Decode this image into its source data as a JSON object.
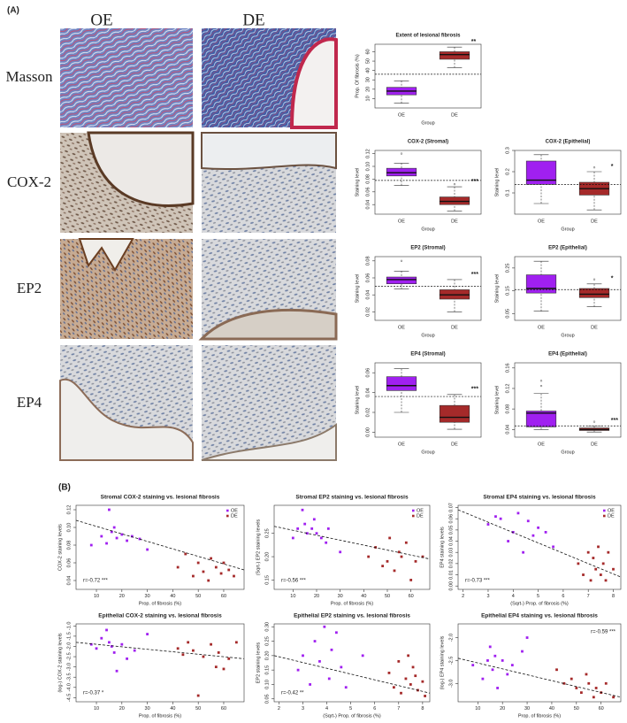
{
  "figure": {
    "panel_a_label": "(A)",
    "columns": [
      "OE",
      "DE"
    ],
    "rows": [
      "Masson",
      "COX-2",
      "EP2",
      "EP4"
    ],
    "panel_b_label": "(B)"
  },
  "chart_data": [
    {
      "type": "box",
      "title": "Extent of lesional fibrosis",
      "xlabel": "Group",
      "ylabel": "Prop. Of fibrosis (%)",
      "categories": [
        "OE",
        "DE"
      ],
      "colors": [
        "#a020f0",
        "#a52a2a"
      ],
      "boxes": [
        {
          "min": 5,
          "q1": 14,
          "median": 18,
          "q3": 22,
          "max": 29,
          "outliers": []
        },
        {
          "min": 43,
          "q1": 52,
          "median": 57,
          "q3": 60,
          "max": 65,
          "outliers": []
        }
      ],
      "reference_line": 36,
      "annotation": "**",
      "ylim": [
        0,
        68
      ],
      "yticks": [
        10,
        20,
        30,
        40,
        50,
        60
      ]
    },
    {
      "type": "box",
      "title": "COX-2 (Stromal)",
      "xlabel": "Group",
      "ylabel": "Staining level",
      "categories": [
        "OE",
        "DE"
      ],
      "colors": [
        "#a020f0",
        "#a52a2a"
      ],
      "boxes": [
        {
          "min": 0.07,
          "q1": 0.085,
          "median": 0.09,
          "q3": 0.097,
          "max": 0.105,
          "outliers": [
            0.12
          ]
        },
        {
          "min": 0.03,
          "q1": 0.04,
          "median": 0.045,
          "q3": 0.052,
          "max": 0.068,
          "outliers": [
            0.072
          ]
        }
      ],
      "reference_line": 0.078,
      "annotation": "***",
      "ylim": [
        0.025,
        0.125
      ],
      "yticks": [
        0.04,
        0.06,
        0.08,
        {
          "value": 0.1,
          "label": "0.10"
        },
        0.12
      ]
    },
    {
      "type": "box",
      "title": "COX-2 (Epithelial)",
      "xlabel": "Group",
      "ylabel": "Staining level",
      "categories": [
        "OE",
        "DE"
      ],
      "colors": [
        "#a020f0",
        "#a52a2a"
      ],
      "boxes": [
        {
          "min": 0.05,
          "q1": 0.14,
          "median": 0.16,
          "q3": 0.25,
          "max": 0.28,
          "outliers": []
        },
        {
          "min": 0.02,
          "q1": 0.09,
          "median": 0.12,
          "q3": 0.15,
          "max": 0.2,
          "outliers": [
            0.22
          ]
        }
      ],
      "reference_line": 0.14,
      "annotation": "*",
      "ylim": [
        0,
        0.3
      ],
      "yticks": [
        0.1,
        0.2,
        0.3
      ]
    },
    {
      "type": "box",
      "title": "EP2 (Stromal)",
      "xlabel": "Group",
      "ylabel": "Staining level",
      "categories": [
        "OE",
        "DE"
      ],
      "colors": [
        "#a020f0",
        "#a52a2a"
      ],
      "boxes": [
        {
          "min": 0.047,
          "q1": 0.053,
          "median": 0.058,
          "q3": 0.061,
          "max": 0.068,
          "outliers": [
            0.08
          ]
        },
        {
          "min": 0.02,
          "q1": 0.035,
          "median": 0.04,
          "q3": 0.046,
          "max": 0.058,
          "outliers": []
        }
      ],
      "reference_line": 0.05,
      "annotation": "***",
      "ylim": [
        0.01,
        0.085
      ],
      "yticks": [
        0.02,
        0.04,
        0.06,
        0.08
      ]
    },
    {
      "type": "box",
      "title": "EP2 (Epithelial)",
      "xlabel": "Group",
      "ylabel": "Staining level",
      "categories": [
        "OE",
        "DE"
      ],
      "colors": [
        "#a020f0",
        "#a52a2a"
      ],
      "boxes": [
        {
          "min": 0.06,
          "q1": 0.14,
          "median": 0.16,
          "q3": 0.22,
          "max": 0.28,
          "outliers": []
        },
        {
          "min": 0.08,
          "q1": 0.12,
          "median": 0.135,
          "q3": 0.16,
          "max": 0.18,
          "outliers": [
            0.2
          ]
        }
      ],
      "reference_line": 0.155,
      "annotation": "*",
      "ylim": [
        0.02,
        0.3
      ],
      "yticks": [
        0.05,
        0.15,
        0.25
      ]
    },
    {
      "type": "box",
      "title": "EP4 (Stromal)",
      "xlabel": "Group",
      "ylabel": "Staining level",
      "categories": [
        "OE",
        "DE"
      ],
      "colors": [
        "#a020f0",
        "#a52a2a"
      ],
      "boxes": [
        {
          "min": 0.02,
          "q1": 0.042,
          "median": 0.047,
          "q3": 0.056,
          "max": 0.064,
          "outliers": []
        },
        {
          "min": 0.003,
          "q1": 0.01,
          "median": 0.015,
          "q3": 0.027,
          "max": 0.038,
          "outliers": []
        }
      ],
      "reference_line": 0.036,
      "annotation": "***",
      "ylim": [
        -0.005,
        0.07
      ],
      "yticks": [
        {
          "value": 0,
          "label": "0.00"
        },
        0.02,
        0.04,
        0.06
      ]
    },
    {
      "type": "box",
      "title": "EP4 (Epithelial)",
      "xlabel": "Group",
      "ylabel": "Staining level",
      "categories": [
        "OE",
        "DE"
      ],
      "colors": [
        "#a020f0",
        "#a52a2a"
      ],
      "boxes": [
        {
          "min": 0.04,
          "q1": 0.045,
          "median": 0.072,
          "q3": 0.076,
          "max": 0.11,
          "outliers": [
            0.125,
            0.135
          ]
        },
        {
          "min": 0.035,
          "q1": 0.038,
          "median": 0.04,
          "q3": 0.043,
          "max": 0.047,
          "outliers": [
            0.055
          ]
        }
      ],
      "reference_line": 0.047,
      "annotation": "***",
      "ylim": [
        0.025,
        0.17
      ],
      "yticks": [
        0.04,
        0.08,
        0.12,
        0.16
      ]
    },
    {
      "type": "scatter",
      "title": "Stromal COX-2 staining vs. lesional fibrosis",
      "xlabel": "Prop. of fibrosis (%)",
      "ylabel": "COX-2 staining levels",
      "legend": "top-right",
      "series": [
        {
          "name": "OE",
          "color": "#a020f0",
          "x": [
            8,
            12,
            14,
            15,
            16,
            17,
            18,
            20,
            22,
            24,
            27,
            30
          ],
          "y": [
            0.08,
            0.09,
            0.082,
            0.12,
            0.095,
            0.1,
            0.088,
            0.092,
            0.085,
            0.09,
            0.087,
            0.075
          ]
        },
        {
          "name": "DE",
          "color": "#a52a2a",
          "x": [
            42,
            45,
            48,
            50,
            52,
            54,
            55,
            57,
            59,
            60,
            62,
            64
          ],
          "y": [
            0.055,
            0.07,
            0.045,
            0.06,
            0.05,
            0.04,
            0.065,
            0.055,
            0.048,
            0.06,
            0.052,
            0.045
          ]
        }
      ],
      "trendline": {
        "x": [
          2,
          68
        ],
        "y": [
          0.108,
          0.052
        ]
      },
      "annotation": "r=-0.72 ***",
      "annotation_corner": "bottom-left",
      "xlim": [
        2,
        68
      ],
      "xticks": [
        10,
        20,
        30,
        40,
        50,
        60
      ],
      "ylim": [
        0.03,
        0.125
      ],
      "yticks": [
        0.04,
        0.06,
        0.08,
        {
          "value": 0.1,
          "label": "0.10"
        },
        0.12
      ]
    },
    {
      "type": "scatter",
      "title": "Stromal EP2 staining vs. lesional fibrosis",
      "xlabel": "Prop. of fibrosis (%)",
      "ylabel": "(Sqrt-) EP2 staining levels",
      "legend": "top-right",
      "series": [
        {
          "name": "OE",
          "color": "#a020f0",
          "x": [
            10,
            12,
            14,
            15,
            16,
            18,
            19,
            20,
            22,
            24,
            25,
            30
          ],
          "y": [
            0.24,
            0.26,
            0.3,
            0.27,
            0.25,
            0.26,
            0.28,
            0.25,
            0.24,
            0.23,
            0.26,
            0.21
          ]
        },
        {
          "name": "DE",
          "color": "#a52a2a",
          "x": [
            42,
            45,
            48,
            50,
            51,
            53,
            55,
            56,
            58,
            60,
            62,
            65
          ],
          "y": [
            0.2,
            0.22,
            0.18,
            0.19,
            0.24,
            0.17,
            0.21,
            0.2,
            0.23,
            0.15,
            0.19,
            0.2
          ]
        }
      ],
      "trendline": {
        "x": [
          2,
          68
        ],
        "y": [
          0.265,
          0.195
        ]
      },
      "annotation": "r=-0.56 ***",
      "annotation_corner": "bottom-left",
      "xlim": [
        2,
        68
      ],
      "xticks": [
        10,
        20,
        30,
        40,
        50,
        60
      ],
      "ylim": [
        0.13,
        0.31
      ],
      "yticks": [
        0.15,
        {
          "value": 0.2,
          "label": "0.20"
        },
        0.25
      ]
    },
    {
      "type": "scatter",
      "title": "Stromal EP4 staining vs. lesional fibrosis",
      "xlabel": "(Sqrt-) Prop. of fibrosis (%)",
      "ylabel": "EP4 staining levels",
      "legend": "top-right",
      "series": [
        {
          "name": "OE",
          "color": "#a020f0",
          "x": [
            3.0,
            3.3,
            3.5,
            3.8,
            4.0,
            4.2,
            4.4,
            4.6,
            4.8,
            5.0,
            5.3,
            5.6
          ],
          "y": [
            0.055,
            0.062,
            0.06,
            0.04,
            0.048,
            0.065,
            0.03,
            0.058,
            0.045,
            0.052,
            0.048,
            0.035
          ]
        },
        {
          "name": "DE",
          "color": "#a52a2a",
          "x": [
            6.6,
            6.8,
            7.0,
            7.1,
            7.2,
            7.3,
            7.4,
            7.5,
            7.6,
            7.7,
            7.8,
            8.0
          ],
          "y": [
            0.02,
            0.01,
            0.03,
            0.005,
            0.025,
            0.015,
            0.035,
            0.01,
            0.02,
            0.005,
            0.03,
            0.015
          ]
        }
      ],
      "trendline": {
        "x": [
          1.8,
          8.3
        ],
        "y": [
          0.068,
          0.008
        ]
      },
      "annotation": "r=-0.73 ***",
      "annotation_corner": "bottom-left",
      "xlim": [
        1.8,
        8.3
      ],
      "xticks": [
        2,
        3,
        4,
        5,
        6,
        7,
        8
      ],
      "ylim": [
        -0.003,
        0.072
      ],
      "yticks": [
        {
          "value": 0,
          "label": "0.00"
        },
        0.01,
        0.02,
        0.03,
        0.04,
        0.05,
        0.06,
        0.07
      ]
    },
    {
      "type": "scatter",
      "title": "Epithelial COX-2 staining vs. lesional fibrosis",
      "xlabel": "Prop. of fibrosis (%)",
      "ylabel": "(log-) COX-2 staining levels",
      "series": [
        {
          "name": "OE",
          "color": "#a020f0",
          "x": [
            8,
            10,
            12,
            14,
            15,
            16,
            17,
            18,
            20,
            22,
            25,
            30
          ],
          "y": [
            -1.9,
            -2.1,
            -1.6,
            -1.2,
            -1.8,
            -2.0,
            -2.3,
            -3.2,
            -1.9,
            -2.6,
            -2.2,
            -1.4
          ]
        },
        {
          "name": "DE",
          "color": "#a52a2a",
          "x": [
            42,
            44,
            46,
            48,
            50,
            52,
            55,
            57,
            58,
            60,
            62,
            65
          ],
          "y": [
            -2.1,
            -2.4,
            -1.8,
            -2.2,
            -4.4,
            -2.5,
            -1.9,
            -3.0,
            -2.3,
            -3.1,
            -2.6,
            -1.8
          ]
        }
      ],
      "trendline": {
        "x": [
          2,
          68
        ],
        "y": [
          -1.8,
          -2.6
        ]
      },
      "annotation": "r=-0.37 *",
      "annotation_corner": "bottom-left",
      "xlim": [
        2,
        68
      ],
      "xticks": [
        10,
        20,
        30,
        40,
        50,
        60
      ],
      "ylim": [
        -4.7,
        -0.9
      ],
      "yticks": [
        -4.5,
        {
          "value": -4,
          "label": "-4.0"
        },
        -3.5,
        {
          "value": -3,
          "label": "-3.0"
        },
        -2.5,
        {
          "value": -2,
          "label": "-2.0"
        },
        -1.5,
        {
          "value": -1,
          "label": "-1.0"
        }
      ]
    },
    {
      "type": "scatter",
      "title": "Epithelial EP2 staining vs. lesional fibrosis",
      "xlabel": "(Sqrt-) Prop. of fibrosis (%)",
      "ylabel": "EP2 staining levels",
      "series": [
        {
          "name": "OE",
          "color": "#a020f0",
          "x": [
            2.8,
            3.0,
            3.3,
            3.5,
            3.7,
            3.9,
            4.1,
            4.2,
            4.4,
            4.6,
            4.8,
            5.5
          ],
          "y": [
            0.15,
            0.2,
            0.1,
            0.25,
            0.18,
            0.3,
            0.12,
            0.22,
            0.28,
            0.16,
            0.09,
            0.2
          ]
        },
        {
          "name": "DE",
          "color": "#a52a2a",
          "x": [
            6.6,
            6.8,
            7.0,
            7.1,
            7.3,
            7.4,
            7.5,
            7.6,
            7.7,
            7.8,
            8.0,
            8.1
          ],
          "y": [
            0.14,
            0.09,
            0.18,
            0.07,
            0.12,
            0.2,
            0.1,
            0.16,
            0.13,
            0.08,
            0.11,
            0.06
          ]
        }
      ],
      "trendline": {
        "x": [
          1.8,
          8.3
        ],
        "y": [
          0.2,
          0.07
        ]
      },
      "annotation": "r=-0.42 **",
      "annotation_corner": "bottom-left",
      "xlim": [
        1.8,
        8.3
      ],
      "xticks": [
        2,
        3,
        4,
        5,
        6,
        7,
        8
      ],
      "ylim": [
        0.04,
        0.31
      ],
      "yticks": [
        0.05,
        {
          "value": 0.1,
          "label": "0.10"
        },
        0.15,
        {
          "value": 0.2,
          "label": "0.20"
        },
        0.25,
        {
          "value": 0.3,
          "label": "0.30"
        }
      ]
    },
    {
      "type": "scatter",
      "title": "Epithelial EP4 staining vs. lesional fibrosis",
      "xlabel": "Prop. of fibrosis (%)",
      "ylabel": "(log-) EP4 staining levels",
      "series": [
        {
          "name": "OE",
          "color": "#a020f0",
          "x": [
            8,
            12,
            14,
            15,
            16,
            17,
            18,
            20,
            22,
            24,
            28,
            30
          ],
          "y": [
            -2.6,
            -2.9,
            -2.5,
            -2.2,
            -2.7,
            -2.4,
            -3.1,
            -2.5,
            -2.8,
            -2.6,
            -2.3,
            -2.0
          ]
        },
        {
          "name": "DE",
          "color": "#a52a2a",
          "x": [
            42,
            45,
            48,
            50,
            52,
            54,
            55,
            57,
            58,
            60,
            62,
            65
          ],
          "y": [
            -2.7,
            -3.0,
            -2.9,
            -3.1,
            -3.2,
            -2.8,
            -3.0,
            -3.3,
            -3.1,
            -3.2,
            -3.0,
            -3.3
          ]
        }
      ],
      "trendline": {
        "x": [
          2,
          68
        ],
        "y": [
          -2.45,
          -3.3
        ]
      },
      "annotation": "r=-0.59 ***",
      "annotation_corner": "top-right",
      "xlim": [
        2,
        68
      ],
      "xticks": [
        10,
        20,
        30,
        40,
        50,
        60
      ],
      "ylim": [
        -3.4,
        -1.7
      ],
      "yticks": [
        {
          "value": -3,
          "label": "-3.0"
        },
        -2.5,
        {
          "value": -2,
          "label": "-2.0"
        }
      ]
    }
  ]
}
